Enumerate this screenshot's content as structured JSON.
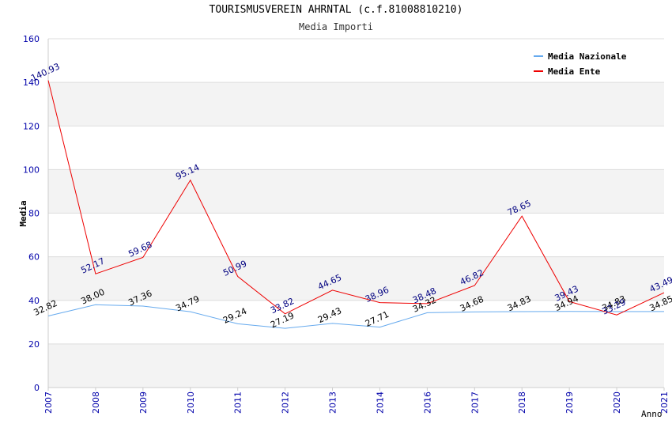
{
  "chart_data": {
    "type": "line",
    "title": "TOURISMUSVEREIN AHRNTAL (c.f.81008810210)",
    "subtitle": "Media Importi",
    "xlabel": "Anno",
    "ylabel": "Media",
    "ylim": [
      0,
      160
    ],
    "yticks": [
      0,
      20,
      40,
      60,
      80,
      100,
      120,
      140,
      160
    ],
    "categories": [
      "2007",
      "2008",
      "2009",
      "2010",
      "2011",
      "2012",
      "2013",
      "2014",
      "2016",
      "2017",
      "2018",
      "2019",
      "2020",
      "2021"
    ],
    "legend_position": "top-right",
    "grid": true,
    "series": [
      {
        "name": "Media Nazionale",
        "color": "#66aaee",
        "label_color": "#000000",
        "values": [
          32.82,
          38.0,
          37.36,
          34.79,
          29.24,
          27.19,
          29.43,
          27.71,
          34.32,
          34.68,
          34.83,
          34.94,
          34.83,
          34.85
        ],
        "labels": [
          "32.82",
          "38.00",
          "37.36",
          "34.79",
          "29.24",
          "27.19",
          "29.43",
          "27.71",
          "34.32",
          "34.68",
          "34.83",
          "34.94",
          "34.83",
          "34.85"
        ]
      },
      {
        "name": "Media Ente",
        "color": "#ee0000",
        "label_color": "#000080",
        "values": [
          140.93,
          52.17,
          59.68,
          95.14,
          50.99,
          33.82,
          44.65,
          38.96,
          38.48,
          46.82,
          78.65,
          39.43,
          33.29,
          43.49
        ],
        "labels": [
          "140.93",
          "52.17",
          "59.68",
          "95.14",
          "50.99",
          "33.82",
          "44.65",
          "38.96",
          "38.48",
          "46.82",
          "78.65",
          "39.43",
          "33.29",
          "43.49"
        ]
      }
    ]
  }
}
